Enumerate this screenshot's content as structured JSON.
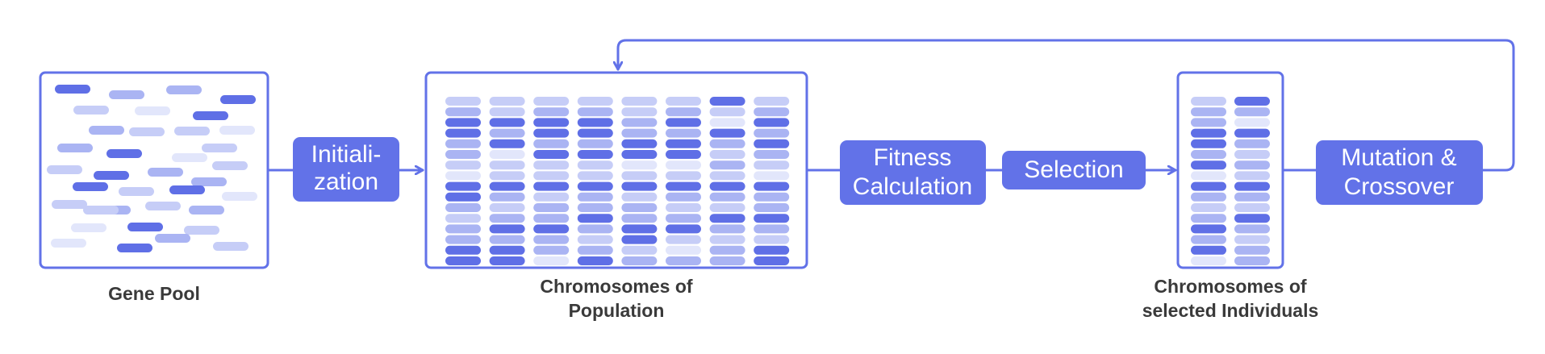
{
  "steps": {
    "initialization": [
      "Initiali-",
      "zation"
    ],
    "fitness": [
      "Fitness",
      "Calculation"
    ],
    "selection": [
      "Selection"
    ],
    "mutation": [
      "Mutation &",
      "Crossover"
    ]
  },
  "captions": {
    "gene_pool": [
      "Gene Pool"
    ],
    "population": [
      "Chromosomes of",
      "Population"
    ],
    "selected": [
      "Chromosomes of",
      "selected Individuals"
    ]
  },
  "colors": {
    "accent": "#6272e8",
    "gene_shades": [
      "#5f6fe6",
      "#aab4f3",
      "#c6cdf7",
      "#e2e6fb"
    ]
  },
  "chromosomes": {
    "population": [
      [
        2,
        1,
        0,
        0,
        1,
        1,
        2,
        3,
        0,
        0,
        1,
        2,
        1,
        1,
        0,
        0
      ],
      [
        2,
        2,
        0,
        1,
        0,
        3,
        2,
        2,
        0,
        1,
        2,
        1,
        0,
        1,
        0,
        0
      ],
      [
        2,
        1,
        0,
        0,
        1,
        0,
        2,
        2,
        0,
        2,
        1,
        1,
        0,
        1,
        1,
        3
      ],
      [
        2,
        1,
        0,
        0,
        1,
        0,
        2,
        2,
        0,
        1,
        1,
        0,
        1,
        2,
        1,
        0
      ],
      [
        2,
        2,
        1,
        1,
        0,
        0,
        3,
        2,
        0,
        2,
        1,
        1,
        0,
        0,
        2,
        1
      ],
      [
        2,
        1,
        0,
        1,
        0,
        0,
        3,
        2,
        0,
        1,
        2,
        1,
        0,
        2,
        3,
        1
      ],
      [
        0,
        2,
        3,
        0,
        1,
        2,
        1,
        2,
        0,
        1,
        2,
        0,
        1,
        2,
        1,
        1
      ],
      [
        2,
        1,
        0,
        1,
        0,
        1,
        2,
        3,
        0,
        1,
        1,
        0,
        1,
        2,
        0,
        0
      ]
    ],
    "selected": [
      [
        2,
        1,
        1,
        0,
        0,
        1,
        0,
        3,
        0,
        1,
        2,
        1,
        0,
        1,
        0,
        3
      ],
      [
        0,
        1,
        3,
        0,
        1,
        2,
        1,
        2,
        0,
        1,
        2,
        0,
        1,
        2,
        1,
        1
      ]
    ]
  },
  "gene_pool": [
    0,
    1,
    1,
    0,
    2,
    3,
    0,
    1,
    2,
    2,
    3,
    1,
    0,
    3,
    2,
    2,
    0,
    1,
    1,
    0,
    2,
    3,
    2,
    1,
    2,
    1,
    3,
    0,
    2,
    3,
    0,
    1,
    2,
    2,
    0,
    2
  ]
}
